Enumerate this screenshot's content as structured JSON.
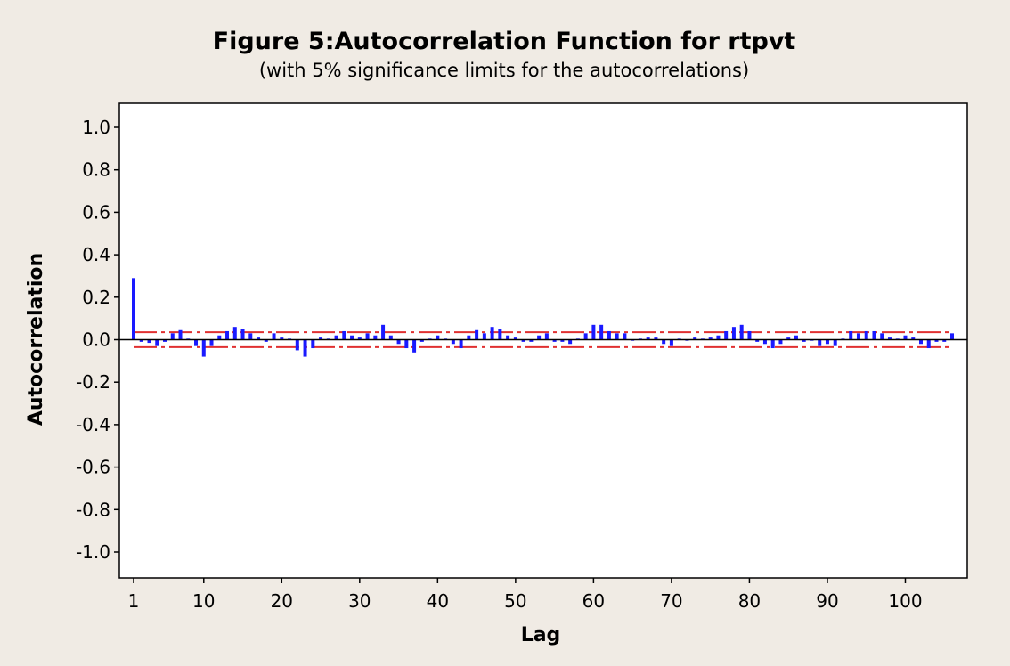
{
  "chart_data": {
    "type": "bar",
    "title": "Figure 5:Autocorrelation Function for rtpvt",
    "subtitle": "(with 5% significance limits for the autocorrelations)",
    "xlabel": "Lag",
    "ylabel": "Autocorrelation",
    "xlim": [
      1,
      106
    ],
    "ylim": [
      -1.0,
      1.0
    ],
    "xticks": [
      1,
      10,
      20,
      30,
      40,
      50,
      60,
      70,
      80,
      90,
      100
    ],
    "yticks": [
      1.0,
      0.8,
      0.6,
      0.4,
      0.2,
      0.0,
      -0.2,
      -0.4,
      -0.6,
      -0.8,
      -1.0
    ],
    "ytick_labels": [
      "1.0",
      "0.8",
      "0.6",
      "0.4",
      "0.2",
      "0.0",
      "-0.2",
      "-0.4",
      "-0.6",
      "-0.8",
      "-1.0"
    ],
    "significance_limits": [
      0.035,
      -0.035
    ],
    "grid": false,
    "colors": {
      "bars": "#1a1aff",
      "limits": "#e03030",
      "zero_line": "#000000",
      "plot_bg": "#ffffff",
      "page_bg": "#f0ebe4"
    },
    "lags": [
      1,
      2,
      3,
      4,
      5,
      6,
      7,
      8,
      9,
      10,
      11,
      12,
      13,
      14,
      15,
      16,
      17,
      18,
      19,
      20,
      21,
      22,
      23,
      24,
      25,
      26,
      27,
      28,
      29,
      30,
      31,
      32,
      33,
      34,
      35,
      36,
      37,
      38,
      39,
      40,
      41,
      42,
      43,
      44,
      45,
      46,
      47,
      48,
      49,
      50,
      51,
      52,
      53,
      54,
      55,
      56,
      57,
      58,
      59,
      60,
      61,
      62,
      63,
      64,
      65,
      66,
      67,
      68,
      69,
      70,
      71,
      72,
      73,
      74,
      75,
      76,
      77,
      78,
      79,
      80,
      81,
      82,
      83,
      84,
      85,
      86,
      87,
      88,
      89,
      90,
      91,
      92,
      93,
      94,
      95,
      96,
      97,
      98,
      99,
      100,
      101,
      102,
      103,
      104,
      105,
      106
    ],
    "values": [
      0.29,
      -0.01,
      -0.015,
      -0.03,
      -0.01,
      0.03,
      0.045,
      0.005,
      -0.03,
      -0.08,
      -0.03,
      0.02,
      0.04,
      0.06,
      0.05,
      0.03,
      0.01,
      -0.01,
      0.03,
      0.01,
      0.005,
      -0.05,
      -0.08,
      -0.04,
      0.01,
      0.005,
      0.02,
      0.04,
      0.02,
      0.01,
      0.03,
      0.02,
      0.07,
      0.02,
      -0.02,
      -0.04,
      -0.06,
      -0.01,
      0.005,
      0.02,
      0.005,
      -0.02,
      -0.04,
      0.02,
      0.045,
      0.03,
      0.06,
      0.05,
      0.02,
      0.01,
      -0.01,
      -0.01,
      0.02,
      0.03,
      -0.01,
      -0.01,
      -0.02,
      0.005,
      0.03,
      0.07,
      0.07,
      0.04,
      0.03,
      0.03,
      -0.005,
      0.005,
      0.01,
      0.01,
      -0.02,
      -0.03,
      0.005,
      -0.005,
      0.01,
      0.005,
      0.01,
      0.02,
      0.04,
      0.06,
      0.07,
      0.04,
      -0.01,
      -0.02,
      -0.04,
      -0.02,
      0.01,
      0.02,
      -0.01,
      -0.005,
      -0.03,
      -0.02,
      -0.03,
      0.005,
      0.04,
      0.03,
      0.04,
      0.04,
      0.03,
      0.01,
      0.005,
      0.02,
      0.01,
      -0.02,
      -0.04,
      -0.01,
      -0.01,
      0.03
    ]
  }
}
